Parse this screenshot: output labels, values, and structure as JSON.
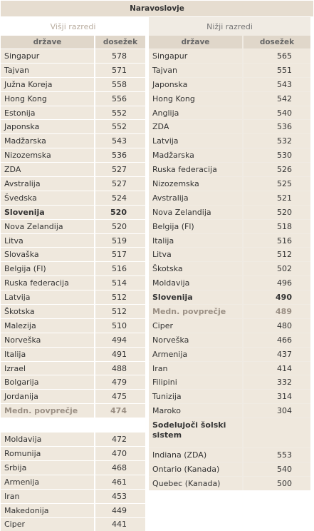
{
  "title": "Naravoslovje",
  "left": {
    "group": "Višji razredi",
    "headers": {
      "country": "države",
      "score": "dosežek"
    },
    "rows": [
      {
        "c": "Singapur",
        "v": "578"
      },
      {
        "c": "Tajvan",
        "v": "571"
      },
      {
        "c": "Južna Koreja",
        "v": "558"
      },
      {
        "c": "Hong Kong",
        "v": "556"
      },
      {
        "c": "Estonija",
        "v": "552"
      },
      {
        "c": "Japonska",
        "v": "552"
      },
      {
        "c": "Madžarska",
        "v": "543"
      },
      {
        "c": "Nizozemska",
        "v": "536"
      },
      {
        "c": "ZDA",
        "v": "527"
      },
      {
        "c": "Avstralija",
        "v": "527"
      },
      {
        "c": "Švedska",
        "v": "524"
      },
      {
        "c": "Slovenija",
        "v": "520",
        "style": "bold"
      },
      {
        "c": "Nova Zelandija",
        "v": "520"
      },
      {
        "c": "Litva",
        "v": "519"
      },
      {
        "c": "Slovaška",
        "v": "517"
      },
      {
        "c": "Belgija (Fl)",
        "v": "516"
      },
      {
        "c": "Ruska federacija",
        "v": "514"
      },
      {
        "c": "Latvija",
        "v": "512"
      },
      {
        "c": "Škotska",
        "v": "512"
      },
      {
        "c": "Malezija",
        "v": "510"
      },
      {
        "c": "Norveška",
        "v": "494"
      },
      {
        "c": "Italija",
        "v": "491"
      },
      {
        "c": "Izrael",
        "v": "488"
      },
      {
        "c": "Bolgarija",
        "v": "479"
      },
      {
        "c": "Jordanija",
        "v": "475"
      },
      {
        "c": "Medn. povprečje",
        "v": "474",
        "style": "avg"
      }
    ],
    "rows2": [
      {
        "c": "Moldavija",
        "v": "472"
      },
      {
        "c": "Romunija",
        "v": "470"
      },
      {
        "c": "Srbija",
        "v": "468"
      },
      {
        "c": "Armenija",
        "v": "461"
      },
      {
        "c": "Iran",
        "v": "453"
      },
      {
        "c": "Makedonija",
        "v": "449"
      },
      {
        "c": "Ciper",
        "v": "441"
      }
    ]
  },
  "right": {
    "group": "Nižji razredi",
    "headers": {
      "country": "države",
      "score": "dosežek"
    },
    "rows": [
      {
        "c": "Singapur",
        "v": "565"
      },
      {
        "c": "Tajvan",
        "v": "551"
      },
      {
        "c": "Japonska",
        "v": "543"
      },
      {
        "c": "Hong Kong",
        "v": "542"
      },
      {
        "c": "Anglija",
        "v": "540"
      },
      {
        "c": "ZDA",
        "v": "536"
      },
      {
        "c": "Latvija",
        "v": "532"
      },
      {
        "c": "Madžarska",
        "v": "530"
      },
      {
        "c": "Ruska federacija",
        "v": "526"
      },
      {
        "c": "Nizozemska",
        "v": "525"
      },
      {
        "c": "Avstralija",
        "v": "521"
      },
      {
        "c": "Nova Zelandija",
        "v": "520"
      },
      {
        "c": "Belgija (Fl)",
        "v": "518"
      },
      {
        "c": "Italija",
        "v": "516"
      },
      {
        "c": "Litva",
        "v": "512"
      },
      {
        "c": "Škotska",
        "v": "502"
      },
      {
        "c": "Moldavija",
        "v": "496"
      },
      {
        "c": "Slovenija",
        "v": "490",
        "style": "bold"
      },
      {
        "c": "Medn. povprečje",
        "v": "489",
        "style": "avg"
      },
      {
        "c": "Ciper",
        "v": "480"
      },
      {
        "c": "Norveška",
        "v": "466"
      },
      {
        "c": "Armenija",
        "v": "437"
      },
      {
        "c": "Iran",
        "v": "414"
      },
      {
        "c": "Filipini",
        "v": "332"
      },
      {
        "c": "Tunizija",
        "v": "314"
      },
      {
        "c": "Maroko",
        "v": "304"
      }
    ],
    "sub_header": "Sodelujoči šolski sistem",
    "rows2": [
      {
        "c": "Indiana (ZDA)",
        "v": "553"
      },
      {
        "c": "Ontario (Kanada)",
        "v": "540"
      },
      {
        "c": "Quebec (Kanada)",
        "v": "500"
      }
    ]
  }
}
